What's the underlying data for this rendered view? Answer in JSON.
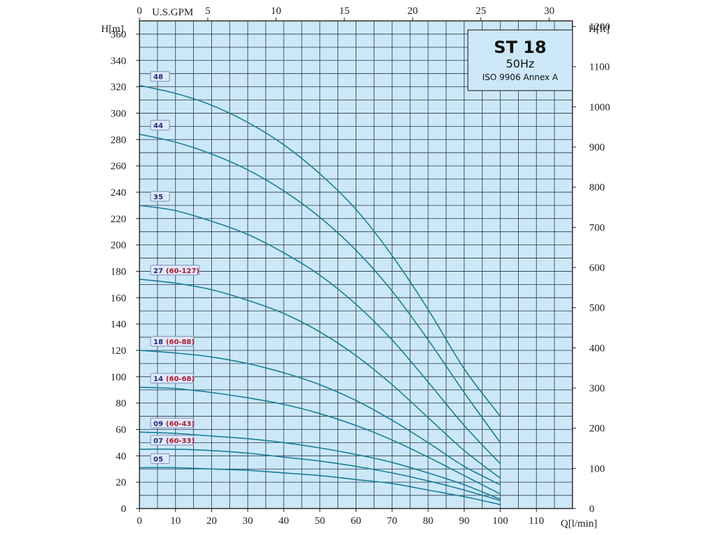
{
  "chart_data": {
    "type": "line",
    "title": "ST 18",
    "frequency": "50Hz",
    "standard": "ISO 9906 Annex A",
    "axes": {
      "x_bottom": {
        "unit_label": "Q[l/min]",
        "range": [
          0,
          120
        ],
        "ticks": [
          "0",
          "10",
          "20",
          "30",
          "40",
          "50",
          "60",
          "70",
          "80",
          "90",
          "100",
          "110"
        ]
      },
      "x_top": {
        "unit_label": "U.S.GPM",
        "range": [
          0,
          31.7
        ],
        "ticks": [
          "0",
          "5",
          "10",
          "15",
          "20",
          "25",
          "30"
        ]
      },
      "y_left": {
        "unit_label": "H[m]",
        "range": [
          0,
          370
        ],
        "ticks": [
          "0",
          "20",
          "40",
          "60",
          "80",
          "100",
          "120",
          "140",
          "160",
          "180",
          "200",
          "220",
          "240",
          "260",
          "280",
          "300",
          "320",
          "340",
          "360"
        ]
      },
      "y_right": {
        "unit_label": "H[ft]",
        "range": [
          0,
          1214
        ],
        "ticks": [
          "0",
          "100",
          "200",
          "300",
          "400",
          "500",
          "600",
          "700",
          "800",
          "900",
          "1000",
          "1100",
          "1200"
        ]
      }
    },
    "grid": true,
    "colors": {
      "plot_background": "#cce8f8",
      "grid": "#233344",
      "curve": "#177f97",
      "label_number": "#1a2a78",
      "label_range": "#b0182a"
    },
    "series": [
      {
        "name": "48",
        "range": "",
        "x": [
          0,
          10,
          20,
          30,
          40,
          50,
          60,
          70,
          80,
          90,
          100
        ],
        "y": [
          321,
          315,
          306,
          293,
          276,
          254,
          227,
          192,
          151,
          106,
          70
        ]
      },
      {
        "name": "44",
        "range": "",
        "x": [
          0,
          10,
          20,
          30,
          40,
          50,
          60,
          70,
          80,
          90,
          100
        ],
        "y": [
          284,
          278,
          269,
          257,
          241,
          221,
          196,
          165,
          128,
          88,
          50
        ]
      },
      {
        "name": "35",
        "range": "",
        "x": [
          0,
          10,
          20,
          30,
          40,
          50,
          60,
          70,
          80,
          90,
          100
        ],
        "y": [
          230,
          226,
          218,
          208,
          194,
          177,
          155,
          128,
          96,
          63,
          34
        ]
      },
      {
        "name": "27",
        "range": "(60-127)",
        "x": [
          0,
          10,
          20,
          30,
          40,
          50,
          60,
          70,
          80,
          90,
          100
        ],
        "y": [
          174,
          171,
          166,
          158,
          148,
          134,
          116,
          94,
          69,
          44,
          23
        ]
      },
      {
        "name": "18",
        "range": "(60-88)",
        "x": [
          0,
          10,
          20,
          30,
          40,
          50,
          60,
          70,
          80,
          90,
          100
        ],
        "y": [
          120,
          118,
          115,
          110,
          103,
          94,
          82,
          67,
          50,
          32,
          18
        ]
      },
      {
        "name": "14",
        "range": "(60-68)",
        "x": [
          0,
          10,
          20,
          30,
          40,
          50,
          60,
          70,
          80,
          90,
          100
        ],
        "y": [
          92,
          91,
          88,
          84,
          79,
          72,
          63,
          52,
          39,
          25,
          11
        ]
      },
      {
        "name": "09",
        "range": "(60-43)",
        "x": [
          0,
          10,
          20,
          30,
          40,
          50,
          60,
          70,
          80,
          90,
          100
        ],
        "y": [
          58,
          57,
          55,
          53,
          50,
          46,
          41,
          35,
          27,
          18,
          7
        ]
      },
      {
        "name": "07",
        "range": "(60-33)",
        "x": [
          0,
          10,
          20,
          30,
          40,
          50,
          60,
          70,
          80,
          90,
          100
        ],
        "y": [
          45,
          45,
          44,
          42,
          39,
          36,
          32,
          27,
          21,
          14,
          6
        ]
      },
      {
        "name": "05",
        "range": "",
        "x": [
          0,
          10,
          20,
          30,
          40,
          50,
          60,
          70,
          80,
          90,
          100
        ],
        "y": [
          31,
          31,
          30,
          29,
          27,
          25,
          22,
          19,
          14,
          9,
          3
        ]
      }
    ]
  }
}
